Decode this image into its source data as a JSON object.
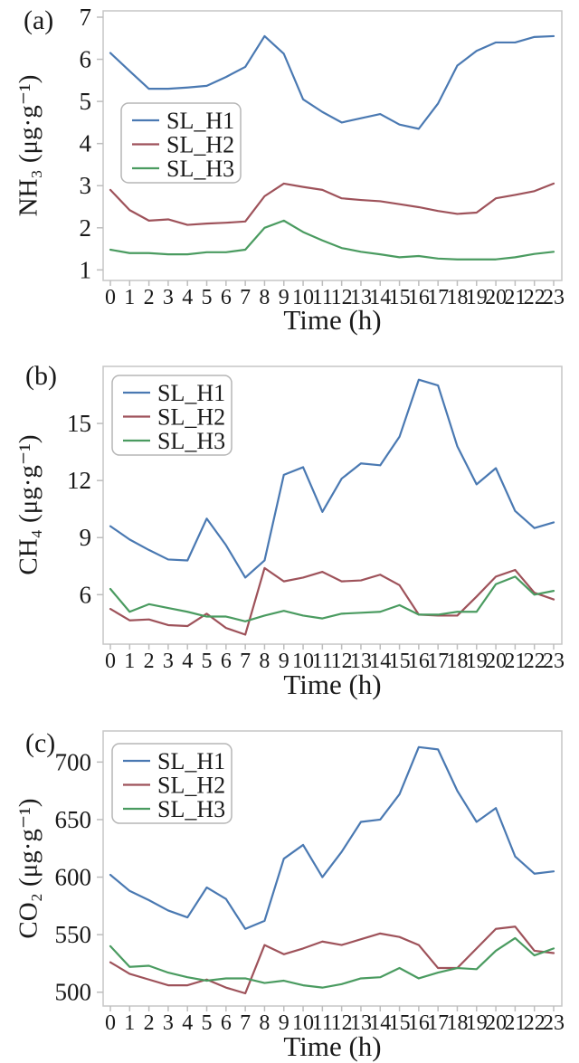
{
  "legend": [
    "SL_H1",
    "SL_H2",
    "SL_H3"
  ],
  "colors": {
    "SL_H1": "#4a79b2",
    "SL_H2": "#9e525a",
    "SL_H3": "#4a9b60"
  },
  "style": {
    "frame": "#c6c6c6",
    "tick": "#bdbdbd",
    "legend_border": "#b5b5b5",
    "text": "#1a1a1a",
    "background": "#ffffff"
  },
  "chart_data": [
    {
      "type": "line",
      "panel_label": "(a)",
      "xlabel": "Time (h)",
      "ylabel": "NH₃ (μg·g⁻¹)",
      "x": [
        0,
        1,
        2,
        3,
        4,
        5,
        6,
        7,
        8,
        9,
        10,
        11,
        12,
        13,
        14,
        15,
        16,
        17,
        18,
        19,
        20,
        21,
        22,
        23
      ],
      "yticks": [
        1,
        2,
        3,
        4,
        5,
        6,
        7
      ],
      "ylim": [
        0.75,
        7.15
      ],
      "grid": false,
      "legend_position": "upper-left-inside",
      "series": [
        {
          "name": "SL_H1",
          "values": [
            6.15,
            5.72,
            5.3,
            5.3,
            5.33,
            5.37,
            5.58,
            5.82,
            6.55,
            6.13,
            5.05,
            4.75,
            4.5,
            4.6,
            4.7,
            4.45,
            4.35,
            4.95,
            5.85,
            6.2,
            6.4,
            6.4,
            6.53,
            6.55
          ]
        },
        {
          "name": "SL_H2",
          "values": [
            2.9,
            2.42,
            2.17,
            2.2,
            2.07,
            2.1,
            2.12,
            2.15,
            2.75,
            3.05,
            2.97,
            2.9,
            2.7,
            2.66,
            2.63,
            2.56,
            2.49,
            2.4,
            2.33,
            2.36,
            2.7,
            2.78,
            2.87,
            3.05
          ]
        },
        {
          "name": "SL_H3",
          "values": [
            1.48,
            1.4,
            1.4,
            1.37,
            1.37,
            1.42,
            1.42,
            1.48,
            2.0,
            2.17,
            1.9,
            1.7,
            1.52,
            1.43,
            1.37,
            1.3,
            1.33,
            1.27,
            1.25,
            1.25,
            1.25,
            1.3,
            1.38,
            1.43
          ]
        }
      ]
    },
    {
      "type": "line",
      "panel_label": "(b)",
      "xlabel": "Time (h)",
      "ylabel": "CH₄ (μg·g⁻¹)",
      "x": [
        0,
        1,
        2,
        3,
        4,
        5,
        6,
        7,
        8,
        9,
        10,
        11,
        12,
        13,
        14,
        15,
        16,
        17,
        18,
        19,
        20,
        21,
        22,
        23
      ],
      "yticks": [
        6,
        9,
        12,
        15
      ],
      "ylim": [
        3.4,
        18.0
      ],
      "grid": false,
      "legend_position": "upper-left-inside",
      "series": [
        {
          "name": "SL_H1",
          "values": [
            9.6,
            8.9,
            8.35,
            7.85,
            7.8,
            10.0,
            8.6,
            6.9,
            7.8,
            12.3,
            12.7,
            10.35,
            12.1,
            12.9,
            12.8,
            14.3,
            17.3,
            17.0,
            13.8,
            11.8,
            12.65,
            10.4,
            9.5,
            9.8
          ]
        },
        {
          "name": "SL_H2",
          "values": [
            5.25,
            4.65,
            4.7,
            4.4,
            4.35,
            5.0,
            4.25,
            3.9,
            7.4,
            6.7,
            6.9,
            7.2,
            6.7,
            6.75,
            7.05,
            6.5,
            4.95,
            4.9,
            4.9,
            5.9,
            6.95,
            7.3,
            6.1,
            5.75
          ]
        },
        {
          "name": "SL_H3",
          "values": [
            6.3,
            5.1,
            5.5,
            5.3,
            5.1,
            4.85,
            4.85,
            4.6,
            4.9,
            5.15,
            4.9,
            4.75,
            5.0,
            5.05,
            5.1,
            5.45,
            4.95,
            4.95,
            5.1,
            5.1,
            6.55,
            6.95,
            6.0,
            6.2
          ]
        }
      ]
    },
    {
      "type": "line",
      "panel_label": "(c)",
      "xlabel": "Time (h)",
      "ylabel": "CO₂ (μg·g⁻¹)",
      "x": [
        0,
        1,
        2,
        3,
        4,
        5,
        6,
        7,
        8,
        9,
        10,
        11,
        12,
        13,
        14,
        15,
        16,
        17,
        18,
        19,
        20,
        21,
        22,
        23
      ],
      "yticks": [
        500,
        550,
        600,
        650,
        700
      ],
      "ylim": [
        488,
        727
      ],
      "grid": false,
      "legend_position": "upper-left-inside",
      "series": [
        {
          "name": "SL_H1",
          "values": [
            602,
            588,
            580,
            571,
            565,
            591,
            581,
            555,
            562,
            616,
            628,
            600,
            622,
            648,
            650,
            672,
            713,
            711,
            675,
            648,
            660,
            618,
            603,
            605
          ]
        },
        {
          "name": "SL_H2",
          "values": [
            526,
            516,
            511,
            506,
            506,
            511,
            504,
            499,
            541,
            533,
            538,
            544,
            541,
            546,
            551,
            548,
            541,
            521,
            521,
            538,
            555,
            557,
            536,
            534
          ]
        },
        {
          "name": "SL_H3",
          "values": [
            540,
            522,
            523,
            517,
            513,
            510,
            512,
            512,
            508,
            510,
            506,
            504,
            507,
            512,
            513,
            521,
            512,
            517,
            521,
            520,
            536,
            547,
            532,
            538
          ]
        }
      ]
    }
  ]
}
